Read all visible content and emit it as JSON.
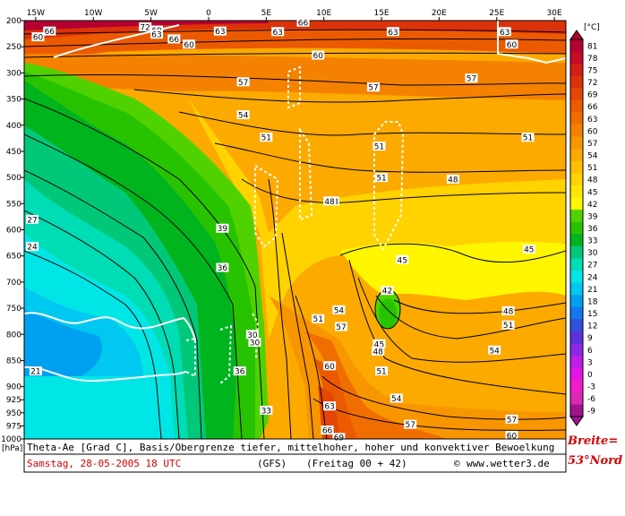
{
  "chart_data": {
    "type": "heatmap",
    "description_text": "Theta-Ae [Grad C], Basis/Obergrenze tiefer, mittelhoher, hoher und konvektiver Bewoelkung",
    "date_text": "Samstag, 28-05-2005  18 UTC",
    "model_text": "(GFS)",
    "forecast_text": "(Freitag 00 + 42)",
    "source_text": "www.wetter3.de",
    "copyright_symbol": "©",
    "latitude_label_line1": "Breite=",
    "latitude_label_line2": "53°Nord",
    "x_axis": {
      "ticks": [
        "15W",
        "10W",
        "5W",
        "0",
        "5E",
        "10E",
        "15E",
        "20E",
        "25E",
        "30E"
      ],
      "range": [
        -16,
        31
      ]
    },
    "y_axis": {
      "unit_label": "[hPa]",
      "ticks": [
        "200",
        "250",
        "300",
        "350",
        "400",
        "450",
        "500",
        "550",
        "600",
        "650",
        "700",
        "750",
        "800",
        "850",
        "900",
        "925",
        "950",
        "975",
        "1000"
      ],
      "range": [
        200,
        1000
      ],
      "scale": "linear, inverted"
    },
    "colorbar": {
      "unit_label": "[°C]",
      "values": [
        81,
        78,
        75,
        72,
        69,
        66,
        63,
        60,
        57,
        54,
        51,
        48,
        45,
        42,
        39,
        36,
        33,
        30,
        27,
        24,
        21,
        18,
        15,
        12,
        9,
        6,
        3,
        0,
        -3,
        -6,
        -9
      ],
      "colors": [
        "#b40030",
        "#c80a28",
        "#d41e14",
        "#dc320a",
        "#e44605",
        "#ec5a00",
        "#f06e00",
        "#f48200",
        "#f89600",
        "#fcaa00",
        "#ffbe00",
        "#ffd200",
        "#ffe600",
        "#fff600",
        "#50d200",
        "#28c300",
        "#00b41e",
        "#00c878",
        "#00dcb4",
        "#00e6e6",
        "#00c8f0",
        "#00a0f0",
        "#1478f0",
        "#3250dc",
        "#5a32dc",
        "#8c28e6",
        "#be1ee6",
        "#e614e6",
        "#f01ec8",
        "#dc28b4",
        "#a0148c"
      ]
    },
    "contour_labels": [
      {
        "v": "72",
        "x": -5.5,
        "y": 212
      },
      {
        "v": "69",
        "x": -4.5,
        "y": 218
      },
      {
        "v": "66",
        "x": -13.8,
        "y": 220
      },
      {
        "v": "63",
        "x": -4.5,
        "y": 226
      },
      {
        "v": "60",
        "x": -14.8,
        "y": 231
      },
      {
        "v": "66",
        "x": -3,
        "y": 235
      },
      {
        "v": "63",
        "x": 1,
        "y": 220
      },
      {
        "v": "60",
        "x": -1.7,
        "y": 245
      },
      {
        "v": "63",
        "x": 6,
        "y": 221
      },
      {
        "v": "66",
        "x": 8.2,
        "y": 203
      },
      {
        "v": "63",
        "x": 16,
        "y": 221
      },
      {
        "v": "63",
        "x": 25.7,
        "y": 221
      },
      {
        "v": "60",
        "x": 26.3,
        "y": 245
      },
      {
        "v": "60",
        "x": 9.5,
        "y": 266
      },
      {
        "v": "57",
        "x": 3,
        "y": 317
      },
      {
        "v": "57",
        "x": 14.3,
        "y": 327
      },
      {
        "v": "57",
        "x": 22.8,
        "y": 310
      },
      {
        "v": "54",
        "x": 3,
        "y": 380
      },
      {
        "v": "51",
        "x": 5,
        "y": 423
      },
      {
        "v": "51",
        "x": 14.8,
        "y": 440
      },
      {
        "v": "51",
        "x": 27.7,
        "y": 423
      },
      {
        "v": "51",
        "x": 15,
        "y": 500
      },
      {
        "v": "48",
        "x": 10.8,
        "y": 545
      },
      {
        "v": "48",
        "x": 21.2,
        "y": 503
      },
      {
        "v": "48",
        "x": 10.5,
        "y": 545
      },
      {
        "v": "45",
        "x": 16.8,
        "y": 657
      },
      {
        "v": "45",
        "x": 27.8,
        "y": 637
      },
      {
        "v": "42",
        "x": 15.5,
        "y": 716
      },
      {
        "v": "39",
        "x": 1.2,
        "y": 597
      },
      {
        "v": "36",
        "x": 1.2,
        "y": 672
      },
      {
        "v": "33",
        "x": 5,
        "y": 945
      },
      {
        "v": "30",
        "x": 3.8,
        "y": 800
      },
      {
        "v": "30",
        "x": 4,
        "y": 815
      },
      {
        "v": "36",
        "x": 2.7,
        "y": 870
      },
      {
        "v": "27",
        "x": -15.3,
        "y": 580
      },
      {
        "v": "24",
        "x": -15.3,
        "y": 632
      },
      {
        "v": "21",
        "x": -15,
        "y": 870
      },
      {
        "v": "51",
        "x": 9.5,
        "y": 770
      },
      {
        "v": "54",
        "x": 11.3,
        "y": 753
      },
      {
        "v": "57",
        "x": 11.5,
        "y": 785
      },
      {
        "v": "60",
        "x": 10.5,
        "y": 860
      },
      {
        "v": "63",
        "x": 10.5,
        "y": 937
      },
      {
        "v": "66",
        "x": 10.3,
        "y": 983
      },
      {
        "v": "69",
        "x": 11.3,
        "y": 997
      },
      {
        "v": "45",
        "x": 14.8,
        "y": 818
      },
      {
        "v": "48",
        "x": 14.7,
        "y": 832
      },
      {
        "v": "51",
        "x": 15,
        "y": 870
      },
      {
        "v": "54",
        "x": 16.3,
        "y": 922
      },
      {
        "v": "57",
        "x": 17.5,
        "y": 972
      },
      {
        "v": "60",
        "x": 26.3,
        "y": 993
      },
      {
        "v": "57",
        "x": 26.3,
        "y": 962
      },
      {
        "v": "54",
        "x": 24.8,
        "y": 830
      },
      {
        "v": "51",
        "x": 26,
        "y": 782
      },
      {
        "v": "48",
        "x": 26,
        "y": 755
      }
    ]
  }
}
